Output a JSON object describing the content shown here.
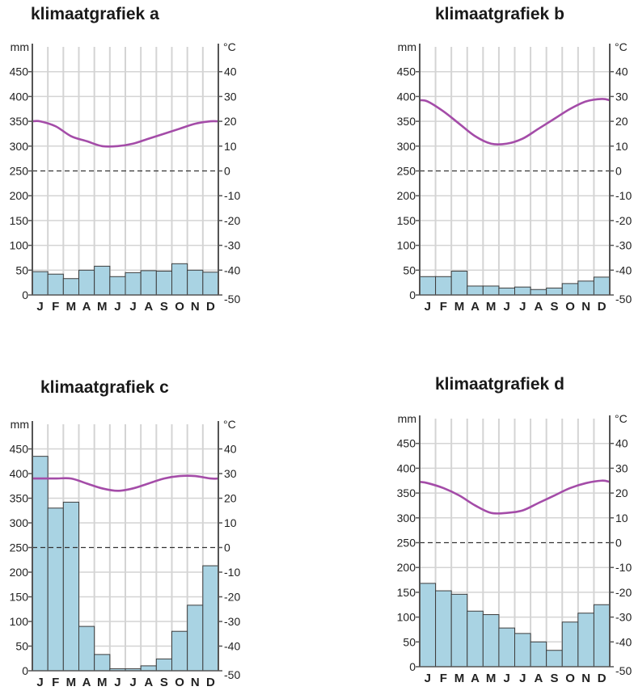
{
  "chart_data": [
    {
      "type": "bar",
      "title": "klimaatgrafiek a",
      "categories": [
        "J",
        "F",
        "M",
        "A",
        "M",
        "J",
        "J",
        "A",
        "S",
        "O",
        "N",
        "D"
      ],
      "left_axis": {
        "unit": "mm",
        "ylim": [
          0,
          500
        ],
        "ticks": [
          "0",
          "50",
          "100",
          "150",
          "200",
          "250",
          "300",
          "350",
          "400",
          "450"
        ]
      },
      "right_axis": {
        "unit": "°C",
        "ylim": [
          -50,
          50
        ],
        "ticks": [
          "-50",
          "-40",
          "-30",
          "-20",
          "-10",
          "0",
          "10",
          "20",
          "30",
          "40"
        ]
      },
      "series": [
        {
          "kind": "bar",
          "axis": "left",
          "values": [
            47,
            42,
            33,
            50,
            58,
            37,
            45,
            49,
            48,
            63,
            50,
            46
          ]
        },
        {
          "kind": "line",
          "axis": "right",
          "values": [
            20,
            18,
            14,
            12,
            10,
            10,
            11,
            13,
            15,
            17,
            19,
            20
          ]
        }
      ],
      "zero_line_dashed": true
    },
    {
      "type": "bar",
      "title": "klimaatgrafiek b",
      "categories": [
        "J",
        "F",
        "M",
        "A",
        "M",
        "J",
        "J",
        "A",
        "S",
        "O",
        "N",
        "D"
      ],
      "left_axis": {
        "unit": "mm",
        "ylim": [
          0,
          500
        ],
        "ticks": [
          "0",
          "50",
          "100",
          "150",
          "200",
          "250",
          "300",
          "350",
          "400",
          "450"
        ]
      },
      "right_axis": {
        "unit": "°C",
        "ylim": [
          -50,
          50
        ],
        "ticks": [
          "-50",
          "-40",
          "-30",
          "-20",
          "-10",
          "0",
          "10",
          "20",
          "30",
          "40"
        ]
      },
      "series": [
        {
          "kind": "bar",
          "axis": "left",
          "values": [
            37,
            37,
            48,
            18,
            18,
            14,
            16,
            11,
            14,
            23,
            28,
            36
          ]
        },
        {
          "kind": "line",
          "axis": "right",
          "values": [
            28,
            24,
            19,
            14,
            11,
            11,
            13,
            17,
            21,
            25,
            28,
            29
          ]
        }
      ],
      "zero_line_dashed": true
    },
    {
      "type": "bar",
      "title": "klimaatgrafiek c",
      "categories": [
        "J",
        "F",
        "M",
        "A",
        "M",
        "J",
        "J",
        "A",
        "S",
        "O",
        "N",
        "D"
      ],
      "left_axis": {
        "unit": "mm",
        "ylim": [
          0,
          500
        ],
        "ticks": [
          "0",
          "50",
          "100",
          "150",
          "200",
          "250",
          "300",
          "350",
          "400",
          "450"
        ]
      },
      "right_axis": {
        "unit": "°C",
        "ylim": [
          -50,
          50
        ],
        "ticks": [
          "-50",
          "-40",
          "-30",
          "-20",
          "-10",
          "0",
          "10",
          "20",
          "30",
          "40"
        ]
      },
      "series": [
        {
          "kind": "bar",
          "axis": "left",
          "values": [
            435,
            330,
            342,
            90,
            33,
            4,
            4,
            10,
            24,
            80,
            133,
            213
          ]
        },
        {
          "kind": "line",
          "axis": "right",
          "values": [
            28,
            28,
            28,
            26,
            24,
            23,
            24,
            26,
            28,
            29,
            29,
            28
          ]
        }
      ],
      "zero_line_dashed": true
    },
    {
      "type": "bar",
      "title": "klimaatgrafiek d",
      "categories": [
        "J",
        "F",
        "M",
        "A",
        "M",
        "J",
        "J",
        "A",
        "S",
        "O",
        "N",
        "D"
      ],
      "left_axis": {
        "unit": "mm",
        "ylim": [
          0,
          500
        ],
        "ticks": [
          "0",
          "50",
          "100",
          "150",
          "200",
          "250",
          "300",
          "350",
          "400",
          "450"
        ]
      },
      "right_axis": {
        "unit": "°C",
        "ylim": [
          -50,
          50
        ],
        "ticks": [
          "-50",
          "-40",
          "-30",
          "-20",
          "-10",
          "0",
          "10",
          "20",
          "30",
          "40"
        ]
      },
      "series": [
        {
          "kind": "bar",
          "axis": "left",
          "values": [
            168,
            153,
            146,
            112,
            105,
            78,
            67,
            50,
            33,
            90,
            108,
            125
          ]
        },
        {
          "kind": "line",
          "axis": "right",
          "values": [
            24,
            22,
            19,
            15,
            12,
            12,
            13,
            16,
            19,
            22,
            24,
            25
          ]
        }
      ],
      "zero_line_dashed": true
    }
  ],
  "colors": {
    "bar_fill": "#a9d3e3",
    "bar_stroke": "#3d3d3d",
    "temp_line": "#a44ca8",
    "grid": "#d4d4d4",
    "axis": "#555555"
  }
}
